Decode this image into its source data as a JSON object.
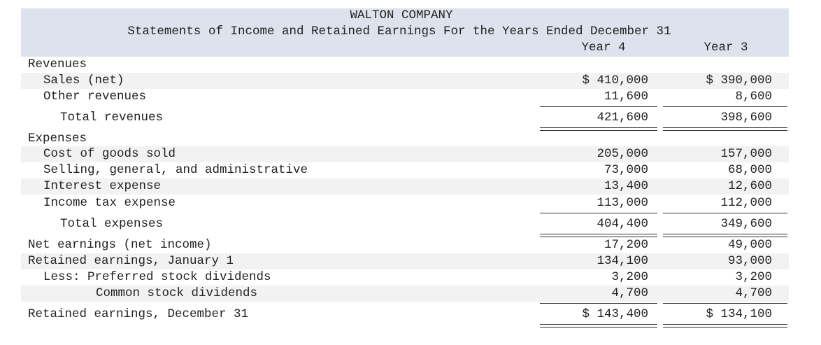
{
  "header": {
    "company": "WALTON COMPANY",
    "title": "Statements of Income and Retained Earnings For the Years Ended December 31",
    "columns": [
      "Year 4",
      "Year 3"
    ]
  },
  "rows": [
    {
      "label": "Revenues"
    },
    {
      "label": "Sales (net)",
      "values": [
        "$ 410,000",
        "$ 390,000"
      ]
    },
    {
      "label": "Other revenues",
      "values": [
        "11,600",
        "8,600"
      ]
    },
    {
      "label": "Total revenues",
      "values": [
        "421,600",
        "398,600"
      ]
    },
    {
      "label": "Expenses"
    },
    {
      "label": "Cost of goods sold",
      "values": [
        "205,000",
        "157,000"
      ]
    },
    {
      "label": "Selling, general, and administrative",
      "values": [
        "73,000",
        "68,000"
      ]
    },
    {
      "label": "Interest expense",
      "values": [
        "13,400",
        "12,600"
      ]
    },
    {
      "label": "Income tax expense",
      "values": [
        "113,000",
        "112,000"
      ]
    },
    {
      "label": "Total expenses",
      "values": [
        "404,400",
        "349,600"
      ]
    },
    {
      "label": "Net earnings (net income)",
      "values": [
        "17,200",
        "49,000"
      ]
    },
    {
      "label": "Retained earnings, January 1",
      "values": [
        "134,100",
        "93,000"
      ]
    },
    {
      "label": "Less: Preferred stock dividends",
      "values": [
        "3,200",
        "3,200"
      ]
    },
    {
      "label": "Common stock dividends",
      "values": [
        "4,700",
        "4,700"
      ]
    },
    {
      "label": "Retained earnings, December 31",
      "values": [
        "$ 143,400",
        "$ 134,100"
      ]
    }
  ]
}
